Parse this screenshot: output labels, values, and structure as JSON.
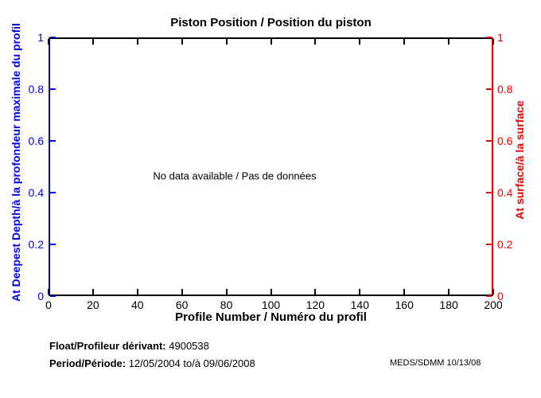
{
  "figure": {
    "background": "#ffffff"
  },
  "chart_data": {
    "type": "line",
    "title": "Piston Position / Position du piston",
    "annotation": "No data available / Pas de données",
    "grid": false,
    "legend": null,
    "series": [],
    "x": {
      "label": "Profile Number / Numéro du profil",
      "min": 0,
      "max": 200,
      "ticks": [
        0,
        20,
        40,
        60,
        80,
        100,
        120,
        140,
        160,
        180,
        200
      ],
      "color": "#000000"
    },
    "y_left": {
      "label": "At Deepest Depth/à la profondeur maximale du profil",
      "min": 0,
      "max": 1,
      "ticks": [
        0,
        0.2,
        0.4,
        0.6,
        0.8,
        1
      ],
      "color": "#0000ee"
    },
    "y_right": {
      "label": "At surface/à la surface",
      "min": 0,
      "max": 1,
      "ticks": [
        0,
        0.2,
        0.4,
        0.6,
        0.8,
        1
      ],
      "color": "#ee0000"
    }
  },
  "footer": {
    "float_label": "Float/Profileur dérivant:",
    "float_value": "4900538",
    "period_label": "Period/Période:",
    "period_value": "12/05/2004  to/à  09/06/2008",
    "credit": "MEDS/SDMM  10/13/08"
  }
}
